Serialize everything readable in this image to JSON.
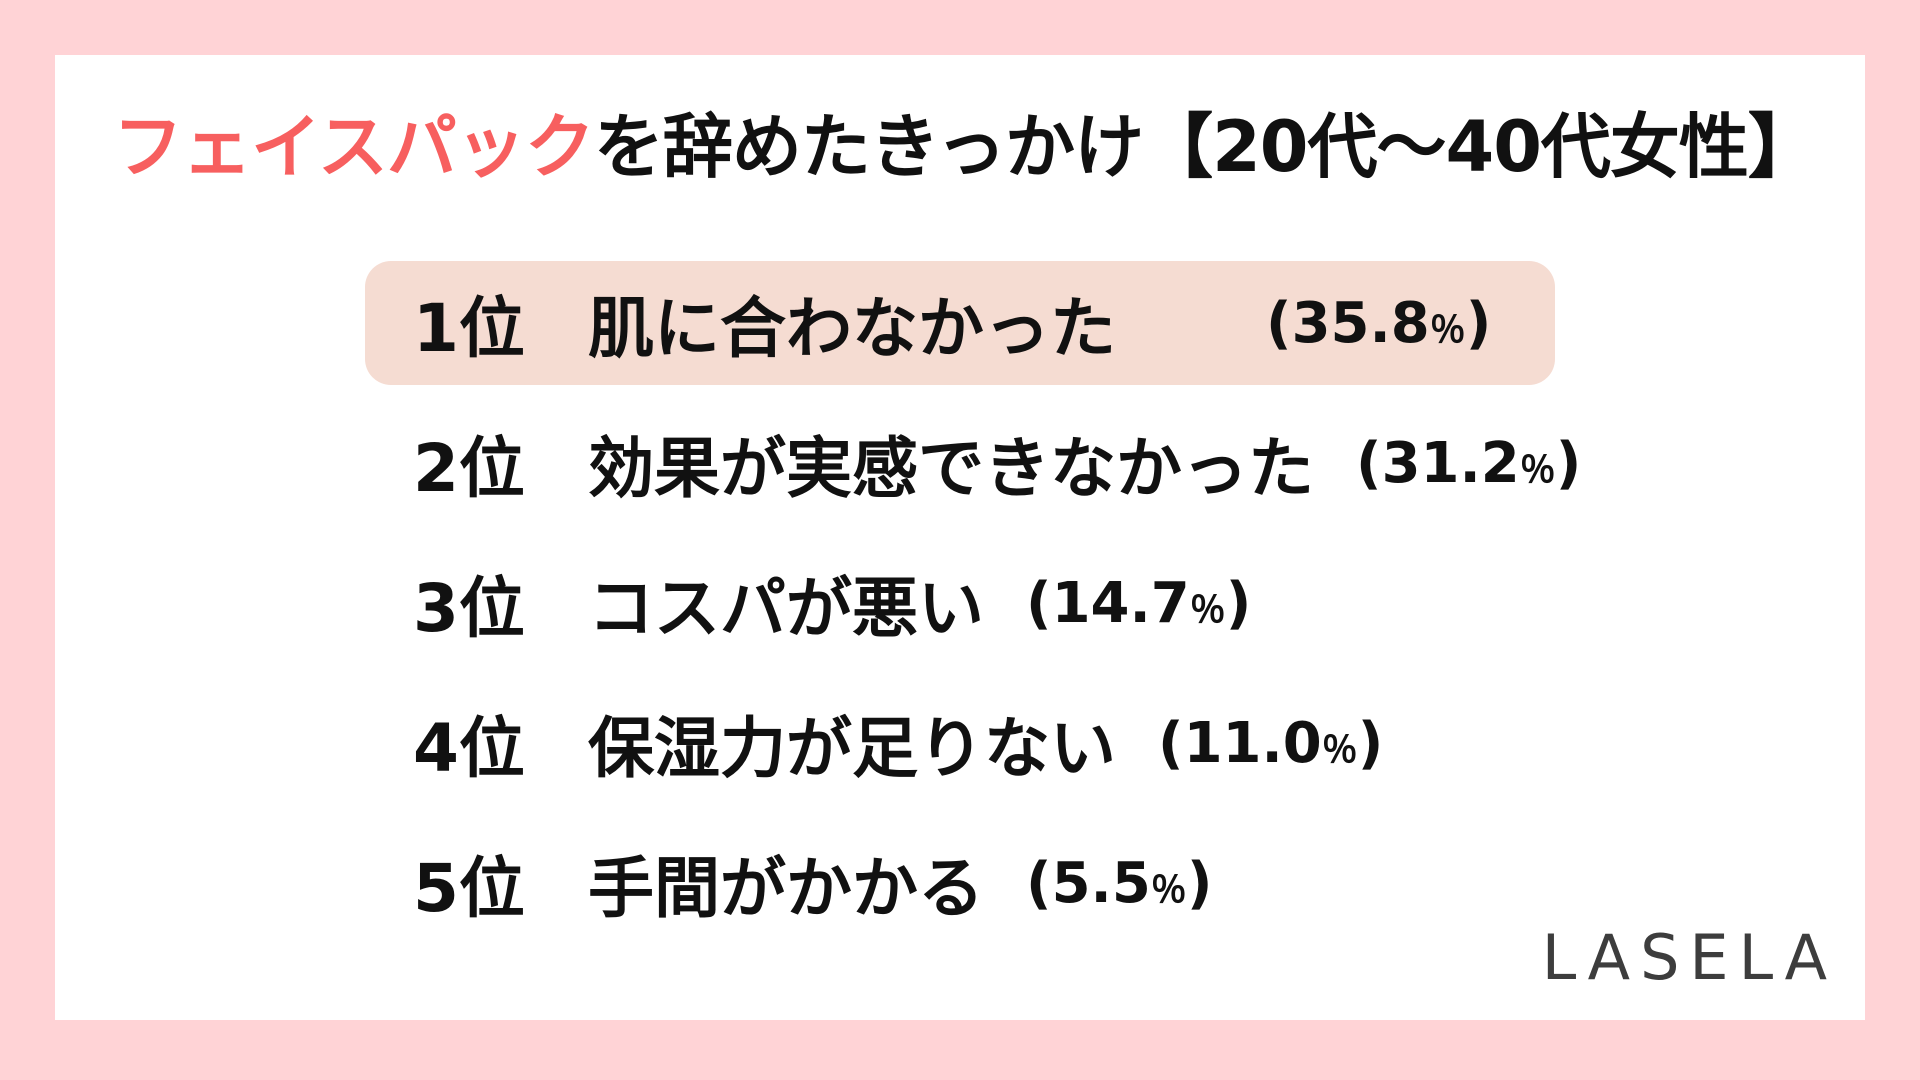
{
  "page": {
    "frame_color": "#ffd3d6",
    "card_color": "#ffffff"
  },
  "title": {
    "highlight": "フェイスパック",
    "rest": "を辞めたきっかけ【20代〜40代女性】",
    "highlight_color": "#f75f5f",
    "text_color": "#111111"
  },
  "ranking": {
    "highlight_bg": "#f5dcd2",
    "rows": [
      {
        "rank": "1位",
        "label": "肌に合わなかった",
        "pct": "(35.8％)",
        "highlighted": true
      },
      {
        "rank": "2位",
        "label": "効果が実感できなかった",
        "pct": "(31.2％)",
        "highlighted": false
      },
      {
        "rank": "3位",
        "label": "コスパが悪い",
        "pct": "(14.7％)",
        "highlighted": false
      },
      {
        "rank": "4位",
        "label": "保湿力が足りない",
        "pct": "(11.0％)",
        "highlighted": false
      },
      {
        "rank": "5位",
        "label": "手間がかかる",
        "pct": "(5.5％)",
        "highlighted": false
      }
    ]
  },
  "footer": {
    "logo": "LASELA",
    "logo_color": "#3d3d3d"
  },
  "chart_data": {
    "type": "table",
    "title": "フェイスパックを辞めたきっかけ【20代〜40代女性】",
    "categories": [
      "肌に合わなかった",
      "効果が実感できなかった",
      "コスパが悪い",
      "保湿力が足りない",
      "手間がかかる"
    ],
    "ranks": [
      "1位",
      "2位",
      "3位",
      "4位",
      "5位"
    ],
    "values": [
      35.8,
      31.2,
      14.7,
      11.0,
      5.5
    ],
    "unit": "％",
    "highlighted_rank": "1位"
  }
}
